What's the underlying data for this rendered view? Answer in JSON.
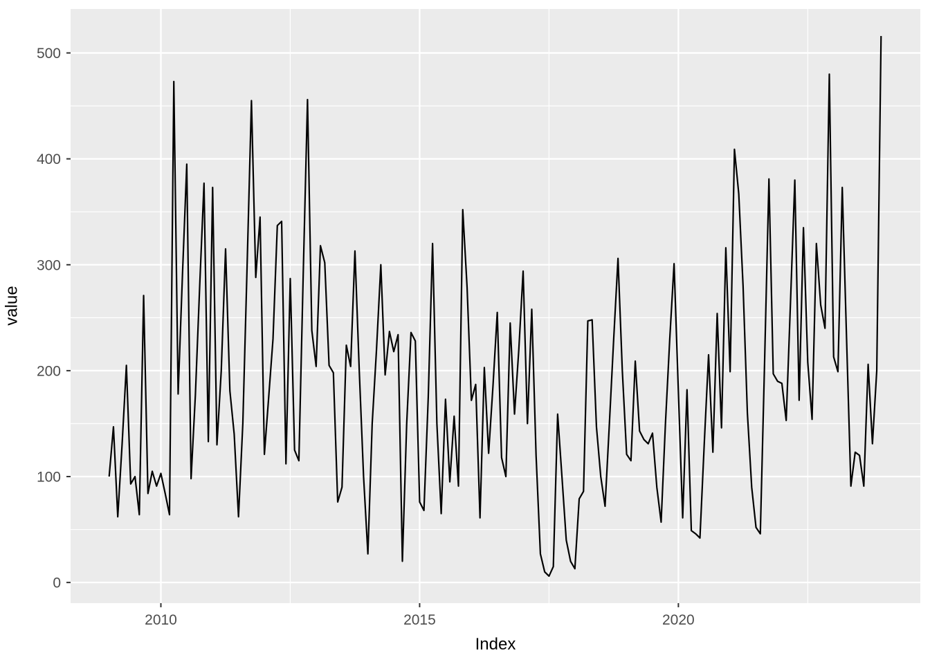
{
  "chart_data": {
    "type": "line",
    "title": "",
    "xlabel": "Index",
    "ylabel": "value",
    "legend": "none",
    "grid": "on",
    "x_axis": {
      "range": [
        2008.255,
        2024.675
      ],
      "major_ticks": [
        2010,
        2015,
        2020
      ],
      "tick_labels": [
        "2010",
        "2015",
        "2020"
      ],
      "minor_ticks": [
        2012.5,
        2017.5,
        2022.5
      ]
    },
    "y_axis": {
      "range": [
        -19.5,
        541.5
      ],
      "major_ticks": [
        0,
        100,
        200,
        300,
        400,
        500
      ],
      "tick_labels": [
        "0",
        "100",
        "200",
        "300",
        "400",
        "500"
      ],
      "minor_ticks": [
        50,
        150,
        250,
        350,
        450
      ]
    },
    "x_start_year": 2009,
    "points_per_year": 12,
    "series": [
      {
        "name": "value",
        "color": "#000000",
        "values": [
          100,
          147,
          62,
          130,
          205,
          93,
          100,
          64,
          271,
          84,
          105,
          91,
          103,
          84,
          64,
          473,
          178,
          290,
          395,
          98,
          177,
          280,
          377,
          133,
          373,
          130,
          200,
          315,
          181,
          140,
          62,
          150,
          300,
          455,
          288,
          345,
          121,
          175,
          230,
          337,
          341,
          112,
          287,
          125,
          115,
          290,
          456,
          238,
          204,
          318,
          302,
          205,
          198,
          76,
          90,
          224,
          204,
          313,
          200,
          100,
          27,
          150,
          220,
          300,
          196,
          237,
          218,
          234,
          20,
          150,
          236,
          228,
          76,
          68,
          175,
          320,
          150,
          65,
          173,
          95,
          157,
          91,
          352,
          279,
          172,
          187,
          61,
          203,
          122,
          185,
          255,
          118,
          100,
          245,
          159,
          220,
          294,
          150,
          258,
          120,
          27,
          10,
          6,
          15,
          159,
          100,
          40,
          20,
          13,
          79,
          86,
          247,
          248,
          147,
          100,
          72,
          150,
          230,
          306,
          200,
          121,
          115,
          209,
          143,
          135,
          131,
          141,
          90,
          57,
          150,
          230,
          301,
          180,
          61,
          182,
          49,
          46,
          42,
          131,
          215,
          123,
          254,
          146,
          316,
          199,
          409,
          367,
          280,
          160,
          90,
          52,
          46,
          210,
          381,
          197,
          190,
          188,
          153,
          265,
          380,
          172,
          335,
          208,
          154,
          320,
          262,
          240,
          480,
          213,
          199,
          373,
          230,
          91,
          123,
          120,
          91,
          206,
          131,
          200,
          516
        ]
      }
    ],
    "style": {
      "panel_background": "#EBEBEB",
      "outer_background": "#FFFFFF",
      "grid_color": "#FFFFFF",
      "line_color": "#000000",
      "tick_label_color": "#4D4D4D",
      "tick_mark_color": "#333333",
      "axis_title_color": "#000000"
    }
  }
}
